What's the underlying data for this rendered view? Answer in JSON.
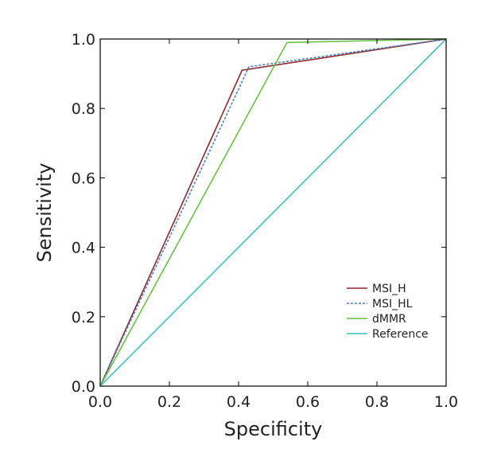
{
  "chart_data": {
    "type": "line",
    "xlabel": "Specificity",
    "ylabel": "Sensitivity",
    "xlim": [
      0.0,
      1.0
    ],
    "ylim": [
      0.0,
      1.0
    ],
    "xticks": [
      "0.0",
      "0.2",
      "0.4",
      "0.6",
      "0.8",
      "1.0"
    ],
    "yticks": [
      "0.0",
      "0.2",
      "0.4",
      "0.6",
      "0.8",
      "1.0"
    ],
    "grid": false,
    "legend_position": "bottom-right",
    "series": [
      {
        "name": "MSI_H",
        "color": "#8b2a2f",
        "dash": "solid",
        "x": [
          0.0,
          0.41,
          1.0
        ],
        "y": [
          0.0,
          0.91,
          1.0
        ]
      },
      {
        "name": "MSI_HL",
        "color": "#4a7fc1",
        "dash": "dotted",
        "x": [
          0.0,
          0.43,
          1.0
        ],
        "y": [
          0.0,
          0.92,
          1.0
        ]
      },
      {
        "name": "dMMR",
        "color": "#6abf45",
        "dash": "solid",
        "x": [
          0.0,
          0.54,
          1.0
        ],
        "y": [
          0.0,
          0.99,
          1.0
        ]
      },
      {
        "name": "Reference",
        "color": "#3fbfbf",
        "dash": "solid",
        "x": [
          0.0,
          1.0
        ],
        "y": [
          0.0,
          1.0
        ]
      }
    ]
  }
}
